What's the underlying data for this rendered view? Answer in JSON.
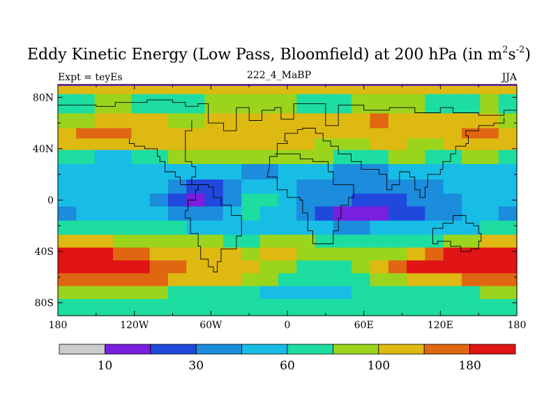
{
  "chart_data": {
    "type": "heatmap",
    "title_main": "Eddy Kinetic Energy (Low Pass, Bloomfield) at 200 hPa (in m",
    "title_unit_m_exp": "2",
    "title_s": "s",
    "title_unit_s_exp": "-2",
    "title_close": ")",
    "subtitle": "222_4_MaBP",
    "left_label": "Expt = teyEs",
    "right_label": "JJA",
    "x_ticks": [
      {
        "value": -180,
        "label": "180"
      },
      {
        "value": -120,
        "label": "120W"
      },
      {
        "value": -60,
        "label": "60W"
      },
      {
        "value": 0,
        "label": "0"
      },
      {
        "value": 60,
        "label": "60E"
      },
      {
        "value": 120,
        "label": "120E"
      },
      {
        "value": 180,
        "label": "180"
      }
    ],
    "y_ticks": [
      {
        "value": 80,
        "label": "80N"
      },
      {
        "value": 40,
        "label": "40N"
      },
      {
        "value": 0,
        "label": "0"
      },
      {
        "value": -40,
        "label": "40S"
      },
      {
        "value": -80,
        "label": "80S"
      }
    ],
    "xlim": [
      -180,
      180
    ],
    "ylim": [
      -90,
      90
    ],
    "colorbar": {
      "colors": [
        "#cccccc",
        "#7a1ee0",
        "#2048dd",
        "#1c8cdc",
        "#18bde6",
        "#1ddda1",
        "#9ad41c",
        "#ddb912",
        "#e06612",
        "#e01414"
      ],
      "labels": [
        {
          "value": "10",
          "index": 1
        },
        {
          "value": "30",
          "index": 3
        },
        {
          "value": "60",
          "index": 5
        },
        {
          "value": "100",
          "index": 7
        },
        {
          "value": "180",
          "index": 9
        }
      ]
    },
    "bands": [
      {
        "lat": 90,
        "levels": [
          7,
          7,
          7,
          7,
          7,
          7,
          7,
          7,
          7,
          7,
          7,
          7,
          7,
          7,
          7,
          7,
          7,
          7,
          7,
          7,
          7,
          7,
          7,
          7,
          7
        ]
      },
      {
        "lat": 75,
        "levels": [
          5,
          5,
          6,
          6,
          5,
          5,
          5,
          5,
          6,
          6,
          6,
          6,
          6,
          5,
          5,
          5,
          6,
          6,
          6,
          6,
          5,
          5,
          5,
          6,
          5
        ]
      },
      {
        "lat": 60,
        "levels": [
          6,
          6,
          7,
          7,
          7,
          7,
          6,
          6,
          7,
          7,
          7,
          7,
          7,
          7,
          7,
          7,
          7,
          8,
          7,
          7,
          7,
          7,
          7,
          7,
          6
        ]
      },
      {
        "lat": 52,
        "levels": [
          7,
          8,
          8,
          8,
          7,
          7,
          7,
          7,
          7,
          7,
          7,
          7,
          7,
          7,
          7,
          7,
          7,
          7,
          7,
          7,
          7,
          7,
          8,
          8,
          7
        ]
      },
      {
        "lat": 44,
        "levels": [
          7,
          7,
          7,
          7,
          7,
          7,
          7,
          7,
          7,
          7,
          7,
          7,
          7,
          7,
          6,
          6,
          6,
          7,
          7,
          6,
          6,
          7,
          7,
          7,
          7
        ]
      },
      {
        "lat": 34,
        "levels": [
          5,
          5,
          4,
          4,
          5,
          5,
          6,
          6,
          6,
          6,
          6,
          6,
          6,
          6,
          6,
          5,
          5,
          5,
          6,
          6,
          5,
          5,
          6,
          6,
          5
        ]
      },
      {
        "lat": 22,
        "levels": [
          4,
          4,
          4,
          4,
          4,
          4,
          4,
          4,
          4,
          4,
          3,
          3,
          4,
          4,
          4,
          3,
          3,
          3,
          4,
          4,
          4,
          4,
          4,
          4,
          4
        ]
      },
      {
        "lat": 10,
        "levels": [
          4,
          4,
          4,
          4,
          4,
          4,
          3,
          2,
          2,
          3,
          4,
          4,
          4,
          3,
          3,
          3,
          3,
          3,
          3,
          3,
          3,
          4,
          4,
          4,
          4
        ]
      },
      {
        "lat": 0,
        "levels": [
          4,
          4,
          4,
          4,
          4,
          3,
          2,
          1,
          2,
          3,
          5,
          5,
          4,
          3,
          3,
          3,
          2,
          2,
          2,
          3,
          3,
          3,
          4,
          4,
          4
        ]
      },
      {
        "lat": -10,
        "levels": [
          3,
          4,
          4,
          4,
          4,
          4,
          3,
          3,
          3,
          4,
          5,
          4,
          4,
          3,
          2,
          1,
          1,
          1,
          2,
          2,
          3,
          3,
          4,
          4,
          3
        ]
      },
      {
        "lat": -22,
        "levels": [
          5,
          5,
          5,
          5,
          5,
          5,
          5,
          4,
          4,
          4,
          4,
          4,
          4,
          4,
          4,
          3,
          3,
          4,
          4,
          4,
          4,
          4,
          4,
          5,
          5
        ]
      },
      {
        "lat": -32,
        "levels": [
          7,
          7,
          7,
          6,
          6,
          6,
          6,
          6,
          6,
          5,
          5,
          6,
          6,
          6,
          5,
          5,
          5,
          5,
          5,
          5,
          5,
          6,
          6,
          7,
          7
        ]
      },
      {
        "lat": -42,
        "levels": [
          9,
          9,
          9,
          8,
          8,
          7,
          7,
          7,
          7,
          7,
          6,
          7,
          7,
          6,
          6,
          6,
          6,
          6,
          6,
          7,
          8,
          9,
          9,
          9,
          9
        ]
      },
      {
        "lat": -52,
        "levels": [
          9,
          9,
          9,
          9,
          9,
          8,
          8,
          7,
          7,
          7,
          7,
          6,
          6,
          5,
          5,
          5,
          6,
          7,
          8,
          9,
          9,
          9,
          9,
          9,
          9
        ]
      },
      {
        "lat": -62,
        "levels": [
          8,
          8,
          8,
          8,
          8,
          8,
          7,
          7,
          7,
          7,
          6,
          6,
          5,
          5,
          5,
          5,
          5,
          6,
          6,
          7,
          7,
          7,
          8,
          8,
          8
        ]
      },
      {
        "lat": -72,
        "levels": [
          6,
          6,
          6,
          6,
          6,
          6,
          5,
          5,
          5,
          5,
          5,
          4,
          4,
          4,
          4,
          4,
          5,
          5,
          5,
          5,
          5,
          5,
          5,
          6,
          6
        ]
      },
      {
        "lat": -82,
        "levels": [
          5,
          5,
          5,
          5,
          5,
          5,
          5,
          5,
          5,
          5,
          5,
          5,
          5,
          5,
          5,
          5,
          5,
          5,
          5,
          5,
          5,
          5,
          5,
          5,
          5
        ]
      },
      {
        "lat": -90,
        "levels": [
          5,
          5,
          5,
          5,
          5,
          5,
          5,
          5,
          5,
          5,
          5,
          5,
          5,
          5,
          5,
          5,
          5,
          5,
          5,
          5,
          5,
          5,
          5,
          5,
          5
        ]
      }
    ],
    "coastline": [
      [
        -180,
        74
      ],
      [
        -150,
        73
      ],
      [
        -135,
        76
      ],
      [
        -110,
        78
      ],
      [
        -90,
        76
      ],
      [
        -80,
        73
      ],
      [
        -70,
        75
      ],
      [
        -62,
        72
      ],
      [
        -62,
        60
      ],
      [
        -50,
        60
      ],
      [
        -50,
        54
      ],
      [
        -40,
        54
      ],
      [
        -40,
        72
      ],
      [
        -30,
        62
      ],
      [
        -20,
        62
      ],
      [
        -20,
        70
      ],
      [
        -10,
        72
      ],
      [
        -5,
        63
      ],
      [
        5,
        63
      ],
      [
        5,
        75
      ],
      [
        30,
        75
      ],
      [
        30,
        58
      ],
      [
        40,
        58
      ],
      [
        40,
        74
      ],
      [
        60,
        74
      ],
      [
        60,
        70
      ],
      [
        80,
        72
      ],
      [
        100,
        72
      ],
      [
        100,
        68
      ],
      [
        120,
        72
      ],
      [
        130,
        68
      ],
      [
        150,
        66
      ],
      [
        170,
        70
      ],
      [
        180,
        66
      ]
    ],
    "continent_outline": [
      [
        -75,
        62
      ],
      [
        -75,
        54
      ],
      [
        -80,
        48
      ],
      [
        -80,
        30
      ],
      [
        -75,
        26
      ],
      [
        -72,
        18
      ],
      [
        -75,
        12
      ],
      [
        -70,
        8
      ],
      [
        -72,
        0
      ],
      [
        -78,
        -8
      ],
      [
        -80,
        -14
      ],
      [
        -76,
        -26
      ],
      [
        -70,
        -36
      ],
      [
        -68,
        -46
      ],
      [
        -62,
        -52
      ],
      [
        -58,
        -56
      ],
      [
        -55,
        -48
      ],
      [
        -52,
        -38
      ],
      [
        -40,
        -28
      ],
      [
        -36,
        -12
      ],
      [
        -44,
        -4
      ],
      [
        -52,
        2
      ],
      [
        -58,
        10
      ],
      [
        -62,
        12
      ],
      [
        -80,
        12
      ],
      [
        -84,
        18
      ],
      [
        -88,
        22
      ],
      [
        -96,
        30
      ],
      [
        -100,
        34
      ],
      [
        -102,
        40
      ],
      [
        -112,
        42
      ],
      [
        -120,
        44
      ],
      [
        -124,
        48
      ]
    ],
    "africa_outline": [
      [
        -16,
        18
      ],
      [
        -8,
        8
      ],
      [
        0,
        2
      ],
      [
        10,
        0
      ],
      [
        12,
        -10
      ],
      [
        16,
        -24
      ],
      [
        20,
        -34
      ],
      [
        30,
        -34
      ],
      [
        36,
        -24
      ],
      [
        40,
        -14
      ],
      [
        42,
        -4
      ],
      [
        48,
        2
      ],
      [
        52,
        12
      ],
      [
        44,
        12
      ],
      [
        36,
        22
      ],
      [
        32,
        30
      ],
      [
        20,
        32
      ],
      [
        10,
        36
      ],
      [
        0,
        36
      ],
      [
        -8,
        34
      ],
      [
        -14,
        26
      ]
    ],
    "eurasia_outline": [
      [
        -10,
        36
      ],
      [
        -8,
        44
      ],
      [
        0,
        46
      ],
      [
        -2,
        52
      ],
      [
        4,
        52
      ],
      [
        8,
        55
      ],
      [
        12,
        56
      ],
      [
        20,
        56
      ],
      [
        22,
        52
      ],
      [
        28,
        46
      ],
      [
        34,
        42
      ],
      [
        40,
        36
      ],
      [
        50,
        30
      ],
      [
        58,
        24
      ],
      [
        66,
        24
      ],
      [
        72,
        20
      ],
      [
        78,
        8
      ],
      [
        82,
        12
      ],
      [
        88,
        22
      ],
      [
        96,
        18
      ],
      [
        100,
        8
      ],
      [
        104,
        2
      ],
      [
        108,
        10
      ],
      [
        110,
        20
      ],
      [
        120,
        24
      ],
      [
        122,
        30
      ],
      [
        128,
        36
      ],
      [
        132,
        42
      ],
      [
        140,
        44
      ],
      [
        142,
        50
      ],
      [
        140,
        54
      ],
      [
        150,
        58
      ],
      [
        162,
        60
      ],
      [
        170,
        64
      ]
    ],
    "australia_outline": [
      [
        114,
        -22
      ],
      [
        122,
        -18
      ],
      [
        130,
        -12
      ],
      [
        136,
        -12
      ],
      [
        140,
        -18
      ],
      [
        146,
        -20
      ],
      [
        150,
        -26
      ],
      [
        152,
        -32
      ],
      [
        150,
        -38
      ],
      [
        144,
        -40
      ],
      [
        136,
        -36
      ],
      [
        128,
        -32
      ],
      [
        118,
        -34
      ],
      [
        114,
        -28
      ]
    ]
  }
}
